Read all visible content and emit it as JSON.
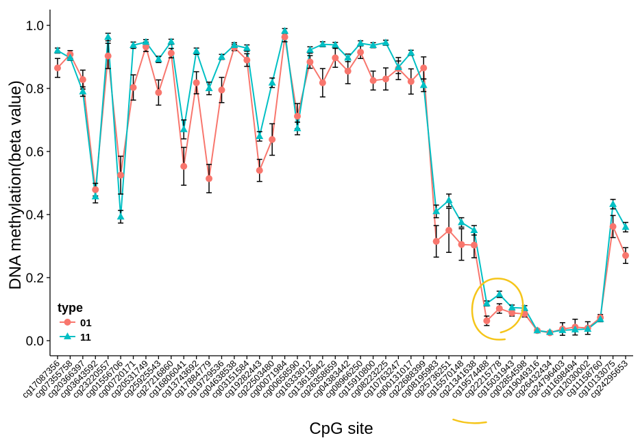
{
  "chart_data": {
    "type": "line",
    "xlabel": "CpG site",
    "ylabel": "DNA methylation(beta value)",
    "ylim": [
      -0.03,
      1.05
    ],
    "yticks": [
      "0.0",
      "0.2",
      "0.4",
      "0.6",
      "0.8",
      "1.0"
    ],
    "grid": false,
    "legend": {
      "title": "type",
      "position": "bottom-left",
      "entries": [
        {
          "label": "01",
          "color": "#F8766D",
          "marker": "circle"
        },
        {
          "label": "11",
          "color": "#00BFC4",
          "marker": "triangle"
        }
      ]
    },
    "categories": [
      "cg17087356",
      "cg07355758",
      "cg20366397",
      "cg03643592",
      "cg23220557",
      "cg01556706",
      "cg00720171",
      "cg20531749",
      "cg25925543",
      "cg27216860",
      "cg16806041",
      "cg13743692",
      "cg17884779",
      "cg19729536",
      "cg04638538",
      "cg03151584",
      "cg19282443",
      "cg22503480",
      "cg00071984",
      "cg00658590",
      "cg16333012",
      "cg13613842",
      "cg26358659",
      "cg04383442",
      "cg08966250",
      "cg15910800",
      "cg08223225",
      "cg10763247",
      "cg00131017",
      "cg22688399",
      "cg08195983",
      "cg25736251",
      "cg15570148",
      "cg21341638",
      "cg19574488",
      "cg22215778",
      "cg15031943",
      "cg02854598",
      "cg19049316",
      "cg26432434",
      "cg24796403",
      "cg11698494",
      "cg12030002",
      "cg11158760",
      "cg10133075",
      "cg24295653"
    ],
    "series": [
      {
        "name": "01",
        "color": "#F8766D",
        "values": [
          0.865,
          0.908,
          0.828,
          0.479,
          0.903,
          0.525,
          0.803,
          0.932,
          0.787,
          0.912,
          0.553,
          0.818,
          0.514,
          0.795,
          0.93,
          0.89,
          0.54,
          0.638,
          0.963,
          0.712,
          0.884,
          0.818,
          0.897,
          0.855,
          0.915,
          0.825,
          0.83,
          0.863,
          0.822,
          0.865,
          0.315,
          0.35,
          0.305,
          0.303,
          0.063,
          0.102,
          0.088,
          0.085,
          0.032,
          0.025,
          0.037,
          0.043,
          0.04,
          0.073,
          0.362,
          0.27
        ],
        "errors": [
          0.03,
          0.012,
          0.03,
          0.02,
          0.04,
          0.06,
          0.04,
          0.015,
          0.04,
          0.015,
          0.06,
          0.035,
          0.045,
          0.04,
          0.01,
          0.02,
          0.035,
          0.05,
          0.015,
          0.04,
          0.02,
          0.045,
          0.03,
          0.04,
          0.02,
          0.03,
          0.035,
          0.035,
          0.04,
          0.035,
          0.05,
          0.07,
          0.05,
          0.04,
          0.015,
          0.015,
          0.01,
          0.01,
          0.005,
          0.005,
          0.02,
          0.025,
          0.02,
          0.01,
          0.035,
          0.025
        ]
      },
      {
        "name": "11",
        "color": "#00BFC4",
        "values": [
          0.92,
          0.897,
          0.79,
          0.457,
          0.963,
          0.393,
          0.937,
          0.947,
          0.892,
          0.948,
          0.67,
          0.918,
          0.8,
          0.9,
          0.937,
          0.928,
          0.648,
          0.818,
          0.982,
          0.673,
          0.922,
          0.94,
          0.938,
          0.897,
          0.943,
          0.937,
          0.945,
          0.867,
          0.913,
          0.81,
          0.41,
          0.445,
          0.375,
          0.35,
          0.118,
          0.147,
          0.105,
          0.103,
          0.032,
          0.027,
          0.033,
          0.035,
          0.037,
          0.068,
          0.433,
          0.36
        ],
        "errors": [
          0.008,
          0.008,
          0.015,
          0.02,
          0.012,
          0.02,
          0.01,
          0.008,
          0.01,
          0.008,
          0.03,
          0.01,
          0.02,
          0.008,
          0.008,
          0.01,
          0.015,
          0.015,
          0.008,
          0.02,
          0.01,
          0.008,
          0.008,
          0.012,
          0.008,
          0.008,
          0.008,
          0.02,
          0.008,
          0.02,
          0.02,
          0.02,
          0.015,
          0.015,
          0.008,
          0.01,
          0.008,
          0.008,
          0.005,
          0.004,
          0.006,
          0.006,
          0.006,
          0.008,
          0.015,
          0.015
        ]
      }
    ],
    "annotations": {
      "highlight_circle_color": "#F5C51A",
      "highlight_range": [
        "cg19574488",
        "cg15031943"
      ]
    }
  }
}
